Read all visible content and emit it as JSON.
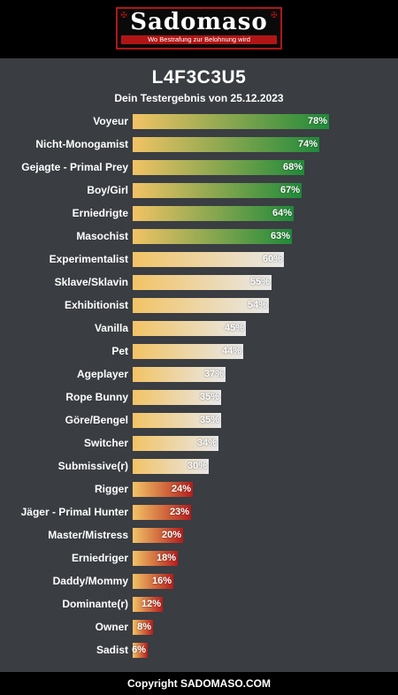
{
  "header": {
    "logo_text": "Sadomaso",
    "logo_tagline": "Wo Bestrafung zur Belohnung wird"
  },
  "title": "L4F3C3U5",
  "subtitle": "Dein Testergebnis von 25.12.2023",
  "colors": {
    "background": "#3a3d42",
    "header": "#000000",
    "bar_start": "#f2c365",
    "high_end": "#1f8a3a",
    "mid_end": "#e8e8e8",
    "low_end": "#b51d1d"
  },
  "chart_data": {
    "type": "bar",
    "orientation": "horizontal",
    "xlim": [
      0,
      100
    ],
    "unit": "%",
    "categories": [
      "Voyeur",
      "Nicht-Monogamist",
      "Gejagte - Primal Prey",
      "Boy/Girl",
      "Erniedrigte",
      "Masochist",
      "Experimentalist",
      "Sklave/Sklavin",
      "Exhibitionist",
      "Vanilla",
      "Pet",
      "Ageplayer",
      "Rope Bunny",
      "Göre/Bengel",
      "Switcher",
      "Submissive(r)",
      "Rigger",
      "Jäger - Primal Hunter",
      "Master/Mistress",
      "Erniedriger",
      "Daddy/Mommy",
      "Dominante(r)",
      "Owner",
      "Sadist"
    ],
    "values": [
      78,
      74,
      68,
      67,
      64,
      63,
      60,
      55,
      54,
      45,
      44,
      37,
      35,
      35,
      34,
      30,
      24,
      23,
      20,
      18,
      16,
      12,
      8,
      6
    ],
    "value_labels": [
      "78%",
      "74%",
      "68%",
      "67%",
      "64%",
      "63%",
      "60%",
      "55%",
      "54%",
      "45%",
      "44%",
      "37%",
      "35%",
      "35%",
      "34%",
      "30%",
      "24%",
      "23%",
      "20%",
      "18%",
      "16%",
      "12%",
      "8%",
      "6%"
    ],
    "color_groups": [
      "high",
      "high",
      "high",
      "high",
      "high",
      "high",
      "mid",
      "mid",
      "mid",
      "mid",
      "mid",
      "mid",
      "mid",
      "mid",
      "mid",
      "mid",
      "low",
      "low",
      "low",
      "low",
      "low",
      "low",
      "low",
      "low"
    ]
  },
  "footer": {
    "copyright": "Copyright SADOMASO.COM"
  }
}
